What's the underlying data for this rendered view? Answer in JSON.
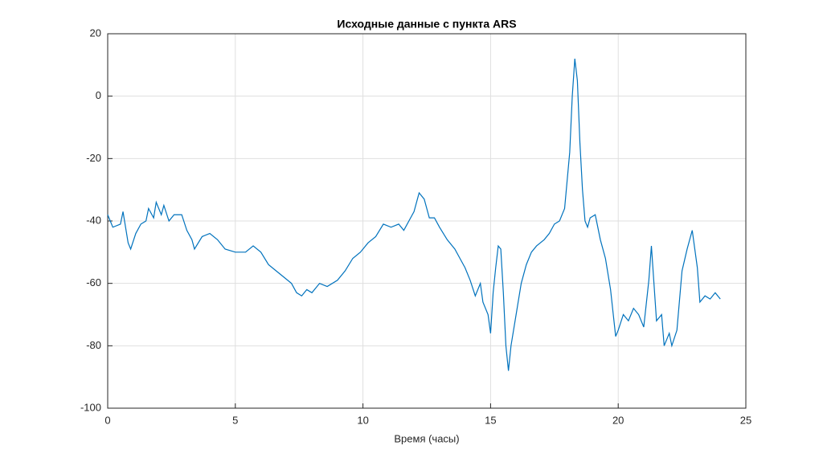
{
  "chart_data": {
    "type": "line",
    "title": "Исходные данные с пункта ARS",
    "xlabel": "Время (часы)",
    "x": [
      0,
      0.2,
      0.5,
      0.6,
      0.8,
      0.9,
      1.1,
      1.3,
      1.5,
      1.6,
      1.8,
      1.9,
      2.1,
      2.2,
      2.4,
      2.6,
      2.9,
      3.1,
      3.3,
      3.4,
      3.7,
      4.0,
      4.3,
      4.6,
      5.0,
      5.4,
      5.7,
      6.0,
      6.3,
      6.6,
      6.9,
      7.2,
      7.4,
      7.6,
      7.8,
      8.0,
      8.3,
      8.6,
      9.0,
      9.3,
      9.6,
      9.9,
      10.2,
      10.5,
      10.8,
      11.1,
      11.4,
      11.6,
      11.8,
      12.0,
      12.2,
      12.4,
      12.6,
      12.8,
      13.0,
      13.3,
      13.6,
      13.8,
      14.0,
      14.2,
      14.4,
      14.6,
      14.7,
      14.9,
      15.0,
      15.1,
      15.2,
      15.3,
      15.4,
      15.5,
      15.6,
      15.7,
      15.8,
      16.0,
      16.2,
      16.4,
      16.6,
      16.8,
      17.1,
      17.3,
      17.5,
      17.7,
      17.9,
      18.1,
      18.2,
      18.3,
      18.4,
      18.5,
      18.6,
      18.7,
      18.8,
      18.9,
      19.1,
      19.3,
      19.5,
      19.7,
      19.9,
      20.0,
      20.2,
      20.4,
      20.6,
      20.8,
      21.0,
      21.2,
      21.3,
      21.5,
      21.7,
      21.8,
      22.0,
      22.1,
      22.3,
      22.5,
      22.7,
      22.9,
      23.1,
      23.2,
      23.4,
      23.6,
      23.8,
      24.0
    ],
    "series": [
      {
        "color": "#0072bd",
        "values": [
          -38,
          -42,
          -41,
          -37,
          -47,
          -49,
          -44,
          -41,
          -40,
          -36,
          -39,
          -34,
          -38,
          -35,
          -40,
          -38,
          -38,
          -43,
          -46,
          -49,
          -45,
          -44,
          -46,
          -49,
          -50,
          -50,
          -48,
          -50,
          -54,
          -56,
          -58,
          -60,
          -63,
          -64,
          -62,
          -63,
          -60,
          -61,
          -59,
          -56,
          -52,
          -50,
          -47,
          -45,
          -41,
          -42,
          -41,
          -43,
          -40,
          -37,
          -31,
          -33,
          -39,
          -39,
          -42,
          -46,
          -49,
          -52,
          -55,
          -59,
          -64,
          -60,
          -66,
          -70,
          -76,
          -63,
          -55,
          -48,
          -49,
          -63,
          -80,
          -88,
          -80,
          -70,
          -60,
          -54,
          -50,
          -48,
          -46,
          -44,
          -41,
          -40,
          -36,
          -18,
          0,
          12,
          5,
          -15,
          -30,
          -40,
          -42,
          -39,
          -38,
          -46,
          -52,
          -62,
          -77,
          -75,
          -70,
          -72,
          -68,
          -70,
          -74,
          -59,
          -48,
          -72,
          -70,
          -80,
          -76,
          -80,
          -75,
          -56,
          -49,
          -43,
          -55,
          -66,
          -64,
          -65,
          -63,
          -65
        ]
      }
    ],
    "xlim": [
      0,
      25
    ],
    "xticks": [
      0,
      5,
      10,
      15,
      20,
      25
    ],
    "ylim": [
      -100,
      20
    ],
    "yticks": [
      -100,
      -80,
      -60,
      -40,
      -20,
      0,
      20
    ],
    "grid": true
  }
}
